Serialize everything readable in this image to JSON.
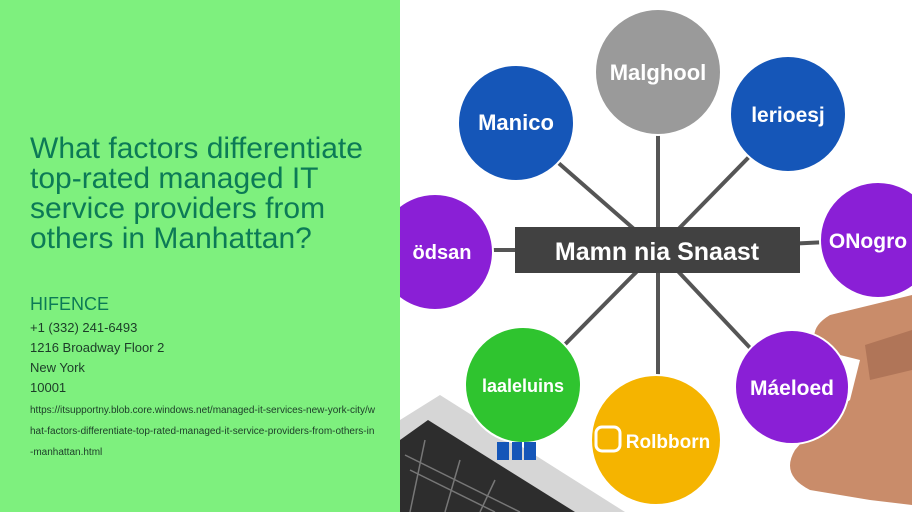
{
  "page": {
    "title": "What factors differentiate top-rated managed IT service providers from others in Manhattan?",
    "company": "HIFENCE",
    "phone": "+1 (332) 241-6493",
    "address": "1216 Broadway Floor 2",
    "city": "New York",
    "zip": "10001",
    "url": "https://itsupportny.blob.core.windows.net/managed-it-services-new-york-city/what-factors-differentiate-top-rated-managed-it-service-providers-from-others-in-manhattan.html"
  },
  "illustration": {
    "center_label": "Mamn nia Snaast",
    "nodes": [
      {
        "label": "Malghool",
        "color": "#9a9a9a"
      },
      {
        "label": "Manico",
        "color": "#1556b8"
      },
      {
        "label": "lerioesj",
        "color": "#1556b8"
      },
      {
        "label": "ödsan",
        "color": "#8a1fd6"
      },
      {
        "label": "ONogro",
        "color": "#8a1fd6"
      },
      {
        "label": "laaleluins",
        "color": "#2fc42f"
      },
      {
        "label": "Rolbborn",
        "color": "#f5b400"
      },
      {
        "label": "Máeloed",
        "color": "#8a1fd6"
      }
    ]
  },
  "colors": {
    "left_background": "#7ef07e",
    "title_text": "#0c7a56"
  }
}
